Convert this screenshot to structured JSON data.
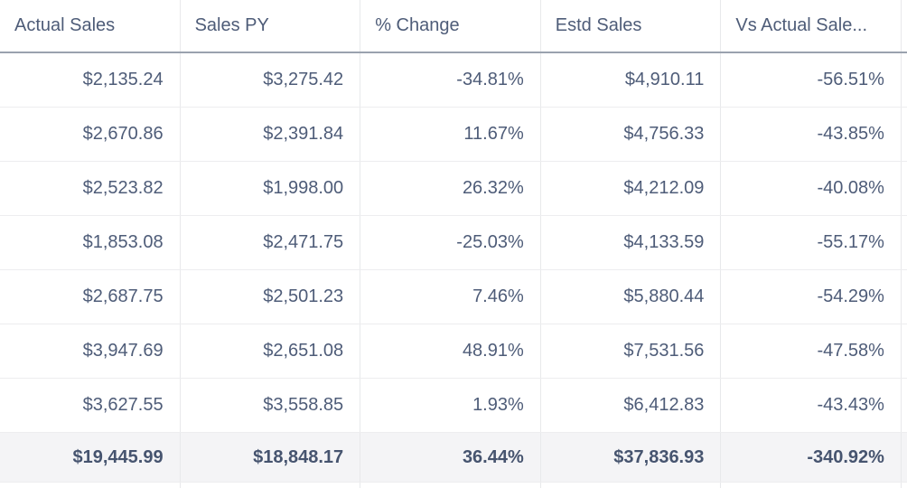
{
  "table": {
    "columns": [
      {
        "label": "Actual Sales"
      },
      {
        "label": "Sales PY"
      },
      {
        "label": "% Change"
      },
      {
        "label": "Estd Sales"
      },
      {
        "label": "Vs Actual Sale..."
      }
    ],
    "rows": [
      [
        "$2,135.24",
        "$3,275.42",
        "-34.81%",
        "$4,910.11",
        "-56.51%"
      ],
      [
        "$2,670.86",
        "$2,391.84",
        "11.67%",
        "$4,756.33",
        "-43.85%"
      ],
      [
        "$2,523.82",
        "$1,998.00",
        "26.32%",
        "$4,212.09",
        "-40.08%"
      ],
      [
        "$1,853.08",
        "$2,471.75",
        "-25.03%",
        "$4,133.59",
        "-55.17%"
      ],
      [
        "$2,687.75",
        "$2,501.23",
        "7.46%",
        "$5,880.44",
        "-54.29%"
      ],
      [
        "$3,947.69",
        "$2,651.08",
        "48.91%",
        "$7,531.56",
        "-47.58%"
      ],
      [
        "$3,627.55",
        "$3,558.85",
        "1.93%",
        "$6,412.83",
        "-43.43%"
      ]
    ],
    "totals": [
      "$19,445.99",
      "$18,848.17",
      "36.44%",
      "$37,836.93",
      "-340.92%"
    ],
    "colors": {
      "text": "#4e5c78",
      "text_total": "#46546f",
      "header_border": "#9aa2ae",
      "vertical_grid_line": "#e8e9eb",
      "horizontal_grid_line": "#ededef",
      "total_row_background": "#f4f4f6",
      "background": "#ffffff"
    }
  }
}
